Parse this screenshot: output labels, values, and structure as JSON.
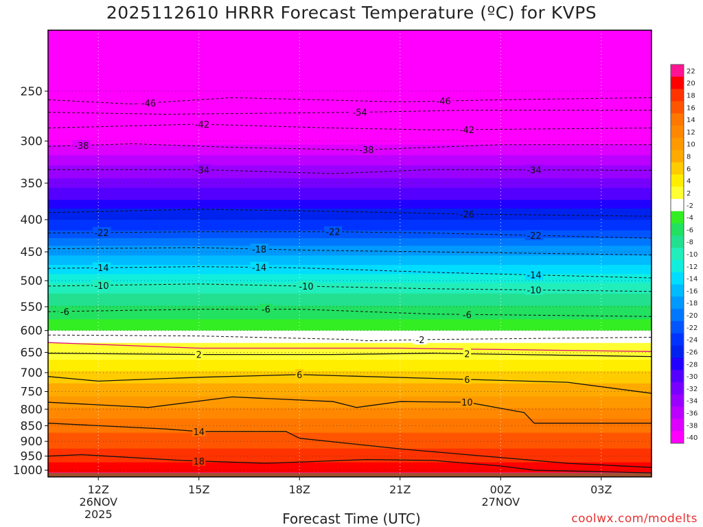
{
  "chart_data": {
    "type": "heatmap",
    "title": "2025112610 HRRR Forecast Temperature (ºC) for KVPS",
    "xlabel": "Forecast Time (UTC)",
    "ylabel": "",
    "y_axis": {
      "scale": "log",
      "range": [
        1025,
        200
      ],
      "ticks": [
        250,
        300,
        350,
        400,
        450,
        500,
        550,
        600,
        650,
        700,
        750,
        800,
        850,
        900,
        950,
        1000
      ]
    },
    "x_axis": {
      "range": [
        -1.5,
        16.5
      ],
      "ticks": [
        {
          "x": 0,
          "lines": [
            "12Z",
            "26NOV",
            "2025"
          ]
        },
        {
          "x": 3,
          "lines": [
            "15Z"
          ]
        },
        {
          "x": 6,
          "lines": [
            "18Z"
          ]
        },
        {
          "x": 9,
          "lines": [
            "21Z"
          ]
        },
        {
          "x": 12,
          "lines": [
            "00Z",
            "27NOV"
          ]
        },
        {
          "x": 15,
          "lines": [
            "03Z"
          ]
        }
      ]
    },
    "colorbar": {
      "labels": [
        "22",
        "20",
        "18",
        "16",
        "14",
        "12",
        "10",
        "8",
        "6",
        "4",
        "2",
        "-2",
        "-4",
        "-6",
        "-8",
        "-10",
        "-12",
        "-14",
        "-16",
        "-18",
        "-20",
        "-22",
        "-24",
        "-26",
        "-28",
        "-30",
        "-32",
        "-34",
        "-36",
        "-38",
        "-40"
      ],
      "colors": [
        "#ff1493",
        "#ff0000",
        "#ff3300",
        "#ff5500",
        "#ff7700",
        "#ff8800",
        "#ff9900",
        "#ffaa00",
        "#ffcc00",
        "#ffee00",
        "#ffff33",
        "#ffffff",
        "#33ee22",
        "#22e060",
        "#22e090",
        "#22eebb",
        "#11eedd",
        "#00ddff",
        "#00bbff",
        "#0099ff",
        "#0077ff",
        "#0055ff",
        "#0033ff",
        "#0022ee",
        "#2200ff",
        "#5500ff",
        "#7700ff",
        "#9900ff",
        "#bb00ff",
        "#dd00ff",
        "#ff00ff"
      ]
    },
    "isotherms": [
      {
        "label": "-54",
        "points": [
          [
            -1.5,
            270
          ],
          [
            2,
            272
          ],
          [
            7.8,
            270
          ],
          [
            11,
            268
          ],
          [
            16.5,
            268
          ]
        ],
        "label_x": 7.8
      },
      {
        "label": "-46",
        "points": [
          [
            -1.5,
            258
          ],
          [
            1,
            262
          ],
          [
            4,
            256
          ],
          [
            9,
            260
          ],
          [
            12,
            258
          ],
          [
            16.5,
            256
          ]
        ],
        "label_x": 1.5
      },
      {
        "label": "-46",
        "points": [
          [
            -1.5,
            258
          ],
          [
            1,
            262
          ],
          [
            4,
            256
          ],
          [
            9,
            260
          ],
          [
            12,
            258
          ],
          [
            16.5,
            256
          ]
        ],
        "label_x": 10.3
      },
      {
        "label": "-42",
        "points": [
          [
            -1.5,
            286
          ],
          [
            3,
            282
          ],
          [
            7,
            286
          ],
          [
            10,
            288
          ],
          [
            16.5,
            286
          ]
        ],
        "label_x": 3.1
      },
      {
        "label": "-42",
        "points": [
          [
            -1.5,
            286
          ],
          [
            3,
            282
          ],
          [
            7,
            286
          ],
          [
            10,
            288
          ],
          [
            16.5,
            286
          ]
        ],
        "label_x": 11
      },
      {
        "label": "-38",
        "points": [
          [
            -1.5,
            306
          ],
          [
            1,
            303
          ],
          [
            4,
            307
          ],
          [
            7.8,
            310
          ],
          [
            12,
            304
          ],
          [
            16.5,
            304
          ]
        ],
        "label_x": -0.5
      },
      {
        "label": "-38",
        "points": [
          [
            -1.5,
            306
          ],
          [
            1,
            303
          ],
          [
            4,
            307
          ],
          [
            7.8,
            310
          ],
          [
            12,
            304
          ],
          [
            16.5,
            304
          ]
        ],
        "label_x": 8
      },
      {
        "label": "-34",
        "points": [
          [
            -1.5,
            333
          ],
          [
            3,
            333
          ],
          [
            7,
            338
          ],
          [
            10,
            333
          ],
          [
            16.5,
            334
          ]
        ],
        "label_x": 3.1
      },
      {
        "label": "-34",
        "points": [
          [
            -1.5,
            333
          ],
          [
            3,
            333
          ],
          [
            7,
            338
          ],
          [
            10,
            333
          ],
          [
            16.5,
            334
          ]
        ],
        "label_x": 13
      },
      {
        "label": "-26",
        "points": [
          [
            -1.5,
            390
          ],
          [
            3,
            385
          ],
          [
            7,
            388
          ],
          [
            11,
            392
          ],
          [
            16.5,
            395
          ]
        ],
        "label_x": 11
      },
      {
        "label": "-22",
        "points": [
          [
            -1.5,
            420
          ],
          [
            3,
            418
          ],
          [
            7,
            418
          ],
          [
            10,
            420
          ],
          [
            16.5,
            428
          ]
        ],
        "label_x": 0.1
      },
      {
        "label": "-22",
        "points": [
          [
            -1.5,
            420
          ],
          [
            3,
            418
          ],
          [
            7,
            418
          ],
          [
            10,
            420
          ],
          [
            16.5,
            428
          ]
        ],
        "label_x": 7
      },
      {
        "label": "-22",
        "points": [
          [
            -1.5,
            420
          ],
          [
            3,
            418
          ],
          [
            7,
            418
          ],
          [
            10,
            420
          ],
          [
            16.5,
            428
          ]
        ],
        "label_x": 13
      },
      {
        "label": "-18",
        "points": [
          [
            -1.5,
            445
          ],
          [
            3,
            443
          ],
          [
            6,
            447
          ],
          [
            10,
            450
          ],
          [
            16.5,
            455
          ]
        ],
        "label_x": 4.8
      },
      {
        "label": "-14",
        "points": [
          [
            -1.5,
            478
          ],
          [
            3,
            475
          ],
          [
            6,
            477
          ],
          [
            10,
            485
          ],
          [
            16.5,
            495
          ]
        ],
        "label_x": 0.1
      },
      {
        "label": "-14",
        "points": [
          [
            -1.5,
            478
          ],
          [
            3,
            475
          ],
          [
            6,
            477
          ],
          [
            10,
            485
          ],
          [
            16.5,
            495
          ]
        ],
        "label_x": 4.8
      },
      {
        "label": "-14",
        "points": [
          [
            -1.5,
            478
          ],
          [
            3,
            475
          ],
          [
            6,
            477
          ],
          [
            10,
            485
          ],
          [
            16.5,
            495
          ]
        ],
        "label_x": 13
      },
      {
        "label": "-10",
        "points": [
          [
            -1.5,
            510
          ],
          [
            3,
            506
          ],
          [
            6,
            510
          ],
          [
            10,
            515
          ],
          [
            16.5,
            520
          ]
        ],
        "label_x": 0.1
      },
      {
        "label": "-10",
        "points": [
          [
            -1.5,
            510
          ],
          [
            3,
            506
          ],
          [
            6,
            510
          ],
          [
            10,
            515
          ],
          [
            16.5,
            520
          ]
        ],
        "label_x": 6.2
      },
      {
        "label": "-10",
        "points": [
          [
            -1.5,
            510
          ],
          [
            3,
            506
          ],
          [
            6,
            510
          ],
          [
            10,
            515
          ],
          [
            16.5,
            520
          ]
        ],
        "label_x": 13
      },
      {
        "label": "-6",
        "points": [
          [
            -1.5,
            560
          ],
          [
            3,
            555
          ],
          [
            6,
            555
          ],
          [
            10,
            565
          ],
          [
            16.5,
            570
          ]
        ],
        "label_x": -1
      },
      {
        "label": "-6",
        "points": [
          [
            -1.5,
            560
          ],
          [
            3,
            555
          ],
          [
            6,
            555
          ],
          [
            10,
            565
          ],
          [
            16.5,
            570
          ]
        ],
        "label_x": 5
      },
      {
        "label": "-6",
        "points": [
          [
            -1.5,
            560
          ],
          [
            3,
            555
          ],
          [
            6,
            555
          ],
          [
            10,
            565
          ],
          [
            16.5,
            570
          ]
        ],
        "label_x": 11
      },
      {
        "label": "-2",
        "points": [
          [
            -1.5,
            610
          ],
          [
            3,
            612
          ],
          [
            7.5,
            620
          ],
          [
            8,
            623
          ],
          [
            10,
            620
          ],
          [
            16.5,
            615
          ]
        ],
        "label_x": 9.6
      },
      {
        "label": "2",
        "points": [
          [
            -1.5,
            652
          ],
          [
            3,
            655
          ],
          [
            7,
            655
          ],
          [
            10,
            652
          ],
          [
            16.5,
            660
          ]
        ],
        "label_x": 3
      },
      {
        "label": "2",
        "points": [
          [
            -1.5,
            652
          ],
          [
            3,
            655
          ],
          [
            7,
            655
          ],
          [
            10,
            652
          ],
          [
            16.5,
            660
          ]
        ],
        "label_x": 11
      },
      {
        "label": "6",
        "points": [
          [
            -1.5,
            710
          ],
          [
            0,
            722
          ],
          [
            3,
            712
          ],
          [
            6,
            705
          ],
          [
            10,
            715
          ],
          [
            14,
            725
          ],
          [
            16.5,
            755
          ]
        ],
        "label_x": 6
      },
      {
        "label": "6",
        "points": [
          [
            -1.5,
            710
          ],
          [
            0,
            722
          ],
          [
            3,
            712
          ],
          [
            6,
            705
          ],
          [
            10,
            715
          ],
          [
            14,
            725
          ],
          [
            16.5,
            755
          ]
        ],
        "label_x": 11
      },
      {
        "label": "10",
        "points": [
          [
            -1.5,
            780
          ],
          [
            1.5,
            795
          ],
          [
            4,
            765
          ],
          [
            7,
            778
          ],
          [
            7.7,
            795
          ],
          [
            9,
            778
          ],
          [
            11,
            780
          ],
          [
            12.7,
            810
          ],
          [
            13,
            842
          ],
          [
            16.5,
            842
          ]
        ],
        "label_x": 11
      },
      {
        "label": "14",
        "points": [
          [
            -1.5,
            842
          ],
          [
            2,
            860
          ],
          [
            3,
            868
          ],
          [
            5.6,
            868
          ],
          [
            6,
            890
          ],
          [
            9,
            925
          ],
          [
            11,
            945
          ],
          [
            14,
            975
          ],
          [
            16.5,
            990
          ]
        ],
        "label_x": 3
      },
      {
        "label": "18",
        "points": [
          [
            -1.5,
            950
          ],
          [
            -0.5,
            945
          ],
          [
            2.5,
            965
          ],
          [
            5,
            975
          ],
          [
            8,
            962
          ],
          [
            10,
            965
          ],
          [
            12,
            985
          ],
          [
            13,
            1000
          ],
          [
            16.5,
            1010
          ]
        ],
        "label_x": 3
      }
    ],
    "isotherms_pink": {
      "label": "0",
      "points": [
        [
          -1.5,
          627
        ],
        [
          3,
          640
        ],
        [
          9,
          640
        ],
        [
          16.5,
          648
        ]
      ]
    },
    "ground_band_color": "#a0522d",
    "credit": "coolwx.com/modelts"
  }
}
